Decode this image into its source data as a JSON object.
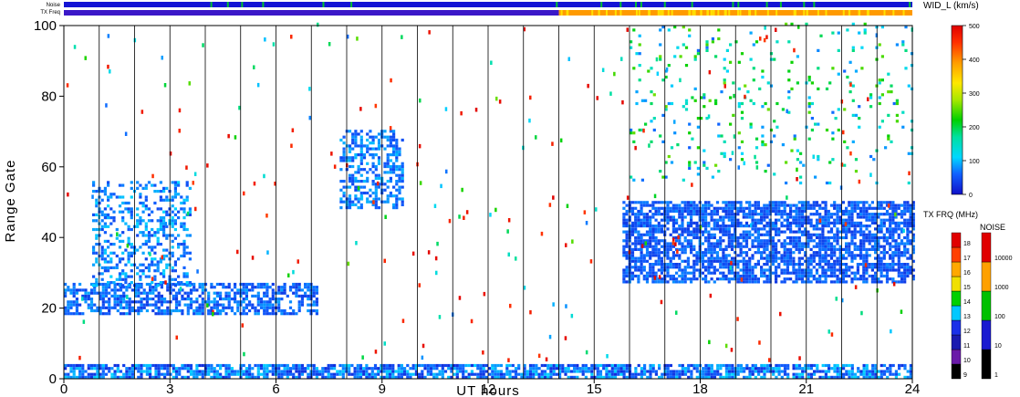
{
  "chart_data": {
    "type": "heatmap",
    "title": "",
    "xlabel": "UT hours",
    "ylabel": "Range Gate",
    "xlim": [
      0,
      24
    ],
    "ylim": [
      0,
      100
    ],
    "x_ticks": [
      0,
      3,
      6,
      9,
      12,
      15,
      18,
      21,
      24
    ],
    "y_ticks": [
      0,
      20,
      40,
      60,
      80,
      100
    ],
    "x_tick_labels": [
      "0",
      "3",
      "6",
      "9",
      "12",
      "15",
      "18",
      "21",
      "24"
    ],
    "y_tick_labels": [
      "0",
      "20",
      "40",
      "60",
      "80",
      "100"
    ],
    "hour_grid_lines": [
      1,
      2,
      3,
      4,
      5,
      6,
      7,
      8,
      9,
      10,
      11,
      12,
      13,
      14,
      15,
      16,
      17,
      18,
      19,
      20,
      21,
      22,
      23
    ],
    "status_bars": [
      {
        "label": "Noise",
        "segments": [
          {
            "from": 0,
            "to": 24,
            "value": "blue"
          }
        ]
      },
      {
        "label": "TX Freq",
        "segments": [
          {
            "from": 0,
            "to": 14,
            "value": "blue"
          },
          {
            "from": 14,
            "to": 24,
            "value": "orange"
          }
        ]
      }
    ],
    "main_colorbar": {
      "title": "WID_L (km/s)",
      "ticks": [
        0,
        100,
        200,
        300,
        400,
        500
      ],
      "tick_labels": [
        "0",
        "100",
        "200",
        "300",
        "400",
        "500"
      ],
      "range": [
        0,
        500
      ]
    },
    "freq_colorbar": {
      "title": "TX FRQ (MHz)",
      "ticks": [
        9,
        10,
        11,
        12,
        13,
        14,
        15,
        16,
        17,
        18
      ],
      "tick_labels": [
        "9",
        "10",
        "11",
        "12",
        "13",
        "14",
        "15",
        "16",
        "17",
        "18"
      ]
    },
    "noise_colorbar": {
      "title": "NOISE",
      "ticks": [
        1,
        10,
        100,
        1000,
        10000
      ],
      "tick_labels": [
        "1",
        "10",
        "100",
        "1000",
        "10000"
      ]
    },
    "scatter_regions": [
      {
        "name": "near-range band",
        "x": [
          0,
          24
        ],
        "y": [
          0,
          4
        ],
        "density": 0.75,
        "width_kms": [
          20,
          110
        ]
      },
      {
        "name": "early ground scatter",
        "x": [
          0,
          7.2
        ],
        "y": [
          18,
          27
        ],
        "density": 0.6,
        "width_kms": [
          30,
          90
        ]
      },
      {
        "name": "post-midnight rising echoes",
        "x": [
          0.8,
          3.6
        ],
        "y": [
          26,
          56
        ],
        "density": 0.35,
        "width_kms": [
          40,
          110
        ]
      },
      {
        "name": "high echo at 8-9 UT",
        "x": [
          7.8,
          9.6
        ],
        "y": [
          48,
          70
        ],
        "density": 0.45,
        "width_kms": [
          40,
          100
        ]
      },
      {
        "name": "afternoon-night echo band",
        "x": [
          15.8,
          24
        ],
        "y": [
          27,
          50
        ],
        "density": 0.7,
        "width_kms": [
          30,
          80
        ]
      },
      {
        "name": "far-range sporadic",
        "x": [
          16,
          24
        ],
        "y": [
          55,
          100
        ],
        "density": 0.06,
        "width_kms": [
          60,
          260
        ]
      }
    ],
    "grid": true,
    "legend": "right"
  },
  "colors": {
    "noise_bar": "#1414d4",
    "freq_bar_low": "#3b18c8",
    "freq_bar_high": "#ff9a00",
    "frame": "#000000"
  }
}
